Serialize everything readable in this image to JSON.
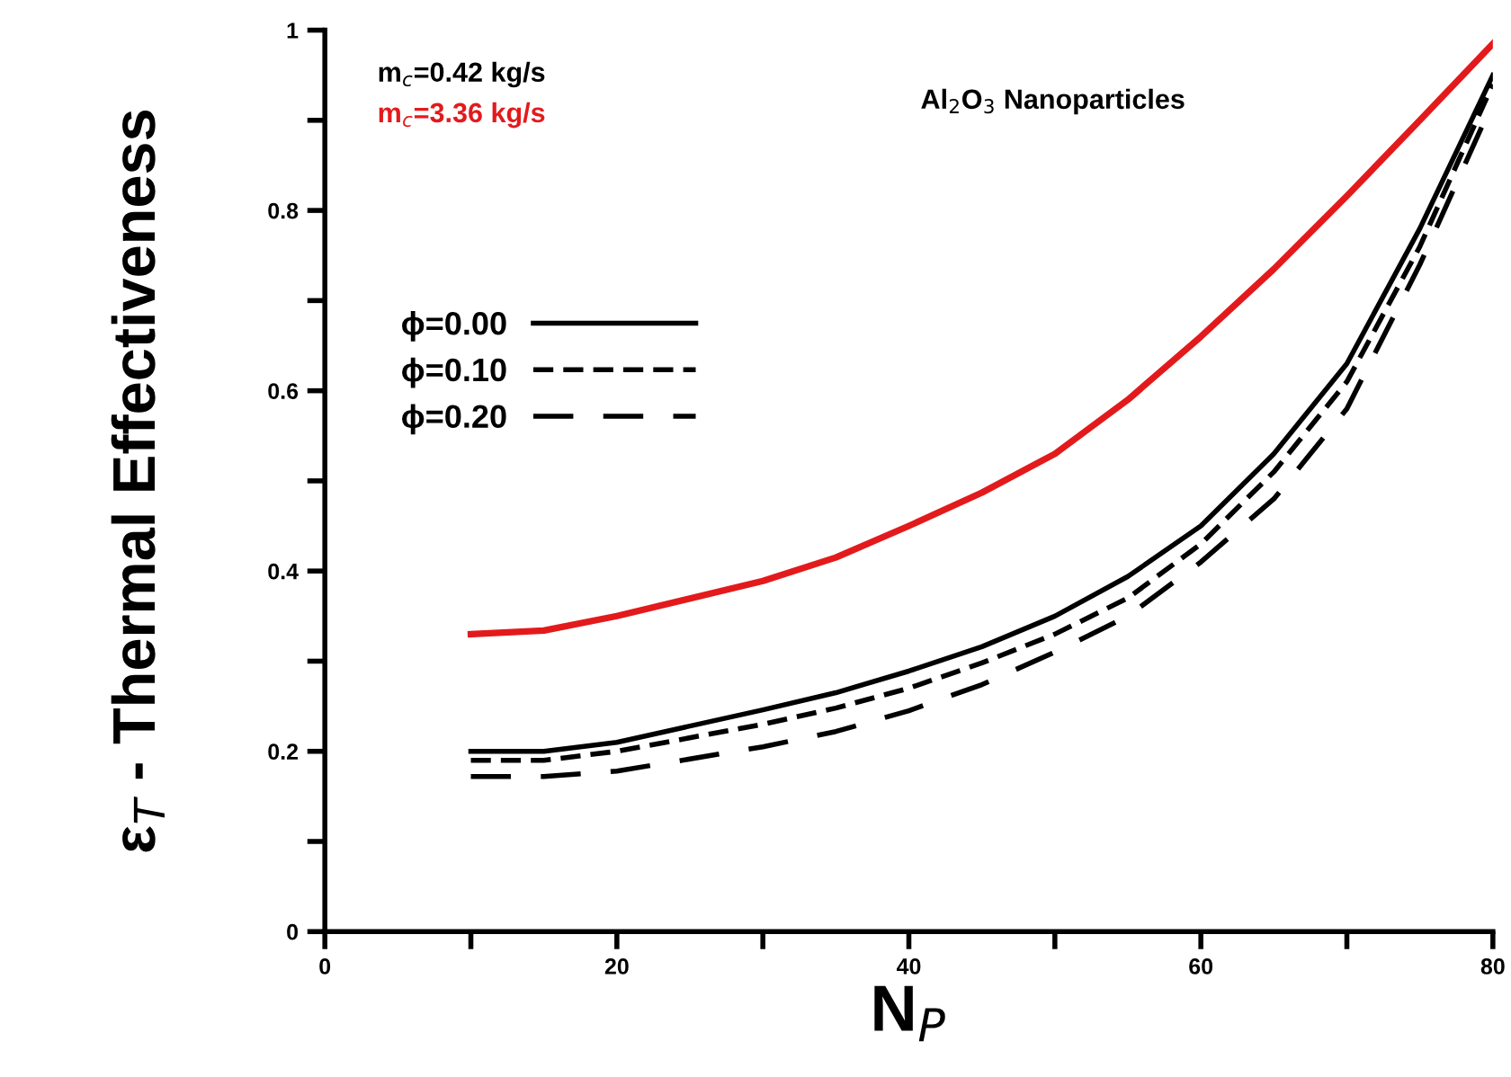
{
  "chart_data": {
    "type": "line",
    "xlabel": "N$_{P}$",
    "ylabel": "ε$_{T}$ - Thermal Effectiveness",
    "annotations": [
      "m$_{c}$=0.42 kg/s",
      "Al$_{2}$O$_{3}$ Nanoparticles"
    ],
    "x": [
      10,
      15,
      20,
      30,
      35,
      40,
      45,
      50,
      55,
      60,
      65,
      70,
      75,
      80
    ],
    "series": [
      {
        "name": "m$_{c}$=3.36 kg/s",
        "color": "#e31a1c",
        "values": [
          0.33,
          0.334,
          0.35,
          0.389,
          0.415,
          0.45,
          0.487,
          0.53,
          0.59,
          0.66,
          0.735,
          0.816,
          0.9,
          0.985
        ]
      },
      {
        "name": "ϕ=0.00",
        "color": "#000000",
        "line_style": "solid",
        "values": [
          0.2,
          0.2,
          0.21,
          0.246,
          0.265,
          0.289,
          0.316,
          0.35,
          0.394,
          0.45,
          0.53,
          0.63,
          0.78,
          0.95
        ]
      },
      {
        "name": "ϕ=0.10",
        "color": "#000000",
        "line_style": "dashed",
        "values": [
          0.19,
          0.19,
          0.2,
          0.23,
          0.248,
          0.27,
          0.298,
          0.33,
          0.37,
          0.43,
          0.51,
          0.61,
          0.76,
          0.94
        ]
      },
      {
        "name": "ϕ=0.20",
        "color": "#000000",
        "line_style": "longdash",
        "values": [
          0.172,
          0.172,
          0.178,
          0.205,
          0.222,
          0.245,
          0.274,
          0.31,
          0.35,
          0.41,
          0.48,
          0.58,
          0.74,
          0.92
        ]
      }
    ],
    "xlim": [
      0,
      80
    ],
    "xticks": [
      0,
      {
        "value": 10,
        "label": null
      },
      20,
      {
        "value": 30,
        "label": null
      },
      40,
      {
        "value": 50,
        "label": null
      },
      60,
      {
        "value": 70,
        "label": null
      },
      80
    ],
    "ylim": [
      0,
      1
    ],
    "yticks": [
      0,
      {
        "value": 0.1,
        "label": null
      },
      0.2,
      {
        "value": 0.3,
        "label": null
      },
      0.4,
      {
        "value": 0.5,
        "label": null
      },
      0.6,
      {
        "value": 0.7,
        "label": null
      },
      0.8,
      {
        "value": 0.9,
        "label": null
      },
      1
    ],
    "grid": false,
    "legend": "left"
  }
}
